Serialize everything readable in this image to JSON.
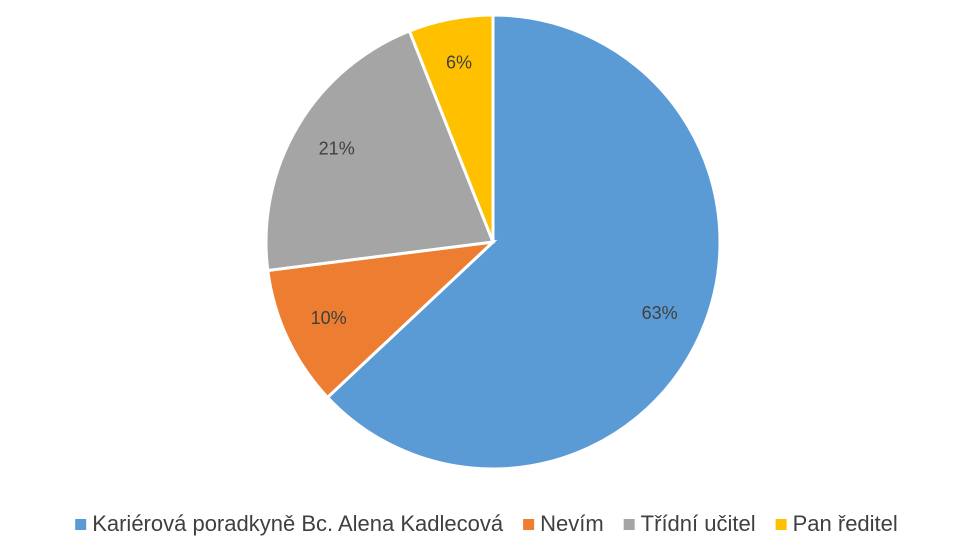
{
  "chart_data": {
    "type": "pie",
    "categories": [
      "Kariérová poradkyně Bc. Alena Kadlecová",
      "Nevím",
      "Třídní učitel",
      "Pan ředitel"
    ],
    "values": [
      63,
      10,
      21,
      6
    ],
    "value_labels": [
      "63%",
      "10%",
      "21%",
      "6%"
    ],
    "colors": [
      "#5b9bd5",
      "#ed7d31",
      "#a5a5a5",
      "#ffc000"
    ],
    "legend": "bottom"
  }
}
